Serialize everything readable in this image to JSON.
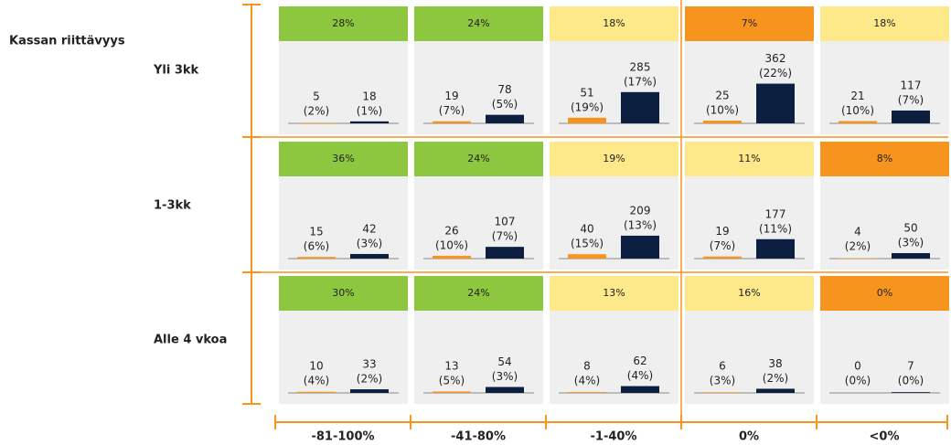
{
  "chart_data": {
    "type": "bar-matrix",
    "title": "Kassan riittävyys",
    "columns": [
      "-81-100%",
      "-41-80%",
      "-1-40%",
      "0%",
      "<0%"
    ],
    "series_colors": [
      "#f7941d",
      "#0d1f40"
    ],
    "rows": [
      {
        "label": "Yli 3kk",
        "cells": [
          {
            "share": 28,
            "share_label": "28%",
            "share_color": "#8dc63f",
            "series": [
              {
                "value": 5,
                "percent_label": "(2%)"
              },
              {
                "value": 18,
                "percent_label": "(1%)"
              }
            ]
          },
          {
            "share": 24,
            "share_label": "24%",
            "share_color": "#8dc63f",
            "series": [
              {
                "value": 19,
                "percent_label": "(7%)"
              },
              {
                "value": 78,
                "percent_label": "(5%)"
              }
            ]
          },
          {
            "share": 18,
            "share_label": "18%",
            "share_color": "#fde98a",
            "series": [
              {
                "value": 51,
                "percent_label": "(19%)"
              },
              {
                "value": 285,
                "percent_label": "(17%)"
              }
            ]
          },
          {
            "share": 7,
            "share_label": "7%",
            "share_color": "#f7941d",
            "series": [
              {
                "value": 25,
                "percent_label": "(10%)"
              },
              {
                "value": 362,
                "percent_label": "(22%)"
              }
            ]
          },
          {
            "share": 18,
            "share_label": "18%",
            "share_color": "#fde98a",
            "series": [
              {
                "value": 21,
                "percent_label": "(10%)"
              },
              {
                "value": 117,
                "percent_label": "(7%)"
              }
            ]
          }
        ]
      },
      {
        "label": "1-3kk",
        "cells": [
          {
            "share": 36,
            "share_label": "36%",
            "share_color": "#8dc63f",
            "series": [
              {
                "value": 15,
                "percent_label": "(6%)"
              },
              {
                "value": 42,
                "percent_label": "(3%)"
              }
            ]
          },
          {
            "share": 24,
            "share_label": "24%",
            "share_color": "#8dc63f",
            "series": [
              {
                "value": 26,
                "percent_label": "(10%)"
              },
              {
                "value": 107,
                "percent_label": "(7%)"
              }
            ]
          },
          {
            "share": 19,
            "share_label": "19%",
            "share_color": "#fde98a",
            "series": [
              {
                "value": 40,
                "percent_label": "(15%)"
              },
              {
                "value": 209,
                "percent_label": "(13%)"
              }
            ]
          },
          {
            "share": 11,
            "share_label": "11%",
            "share_color": "#fde98a",
            "series": [
              {
                "value": 19,
                "percent_label": "(7%)"
              },
              {
                "value": 177,
                "percent_label": "(11%)"
              }
            ]
          },
          {
            "share": 8,
            "share_label": "8%",
            "share_color": "#f7941d",
            "series": [
              {
                "value": 4,
                "percent_label": "(2%)"
              },
              {
                "value": 50,
                "percent_label": "(3%)"
              }
            ]
          }
        ]
      },
      {
        "label": "Alle 4 vkoa",
        "cells": [
          {
            "share": 30,
            "share_label": "30%",
            "share_color": "#8dc63f",
            "series": [
              {
                "value": 10,
                "percent_label": "(4%)"
              },
              {
                "value": 33,
                "percent_label": "(2%)"
              }
            ]
          },
          {
            "share": 24,
            "share_label": "24%",
            "share_color": "#8dc63f",
            "series": [
              {
                "value": 13,
                "percent_label": "(5%)"
              },
              {
                "value": 54,
                "percent_label": "(3%)"
              }
            ]
          },
          {
            "share": 13,
            "share_label": "13%",
            "share_color": "#fde98a",
            "series": [
              {
                "value": 8,
                "percent_label": "(4%)"
              },
              {
                "value": 62,
                "percent_label": "(4%)"
              }
            ]
          },
          {
            "share": 16,
            "share_label": "16%",
            "share_color": "#fde98a",
            "series": [
              {
                "value": 6,
                "percent_label": "(3%)"
              },
              {
                "value": 38,
                "percent_label": "(2%)"
              }
            ]
          },
          {
            "share": 0,
            "share_label": "0%",
            "share_color": "#f7941d",
            "series": [
              {
                "value": 0,
                "percent_label": "(0%)"
              },
              {
                "value": 7,
                "percent_label": "(0%)"
              }
            ]
          }
        ]
      }
    ]
  }
}
